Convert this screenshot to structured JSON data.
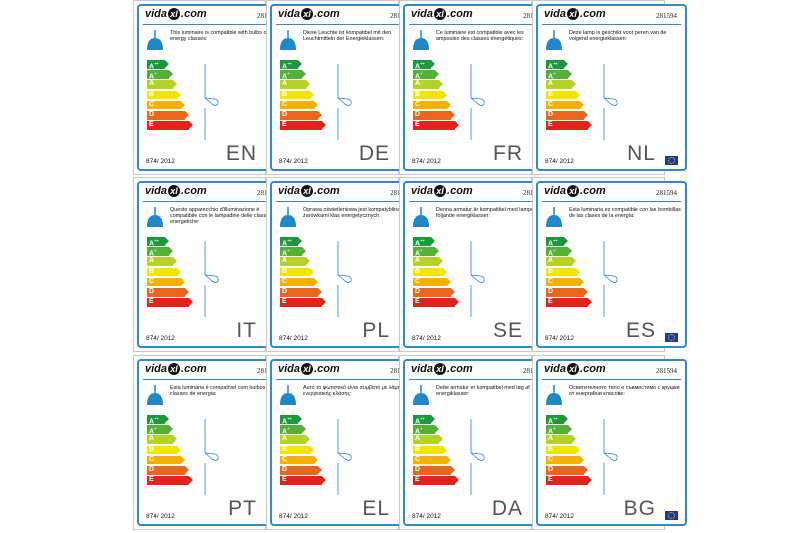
{
  "label": {
    "code": "281594",
    "regulation": "874/ 2012",
    "classes": [
      "A++",
      "A+",
      "A",
      "B",
      "C",
      "D",
      "E"
    ],
    "class_colors": [
      "#1a9a3c",
      "#53b133",
      "#b6d227",
      "#f2e600",
      "#f6b100",
      "#e9661b",
      "#e2231a"
    ]
  },
  "cells": [
    {
      "lang": "EN",
      "text": "This luminaire is compatible with bulbs of the energy classes:"
    },
    {
      "lang": "DE",
      "text": "Diese Leuchte ist kompatibel mit den Leuchtmitteln der Energieklassen:"
    },
    {
      "lang": "FR",
      "text": "Ce luminaire est compatible avec les ampoules des classes énergétiques:"
    },
    {
      "lang": "NL",
      "text": "Deze lamp is geschikt voor peren van de volgend energieklassen:"
    },
    {
      "lang": "IT",
      "text": "Questo apparecchio d'illuminazione è compatibile con le lampadine delle classi energetiche:"
    },
    {
      "lang": "PL",
      "text": "Oprawa oświetleniowa jest kompatybilna z żarówkami klas energetycznych:"
    },
    {
      "lang": "SE",
      "text": "Denna armatur är kompatibel med lampor av följande energiklasser:"
    },
    {
      "lang": "ES",
      "text": "Esta luminaria es compatible con las bombillas de las clases de la energía:"
    },
    {
      "lang": "PT",
      "text": "Esta luminária é compatível com bulbos das classes de energia:"
    },
    {
      "lang": "EL",
      "text": "Αυτό το φωτιστικό είναι συμβατό με λάμπες ενεργειακής κλάσης:"
    },
    {
      "lang": "DA",
      "text": "Dette armatur er kompatibel med løg af energiklasser:"
    },
    {
      "lang": "BG",
      "text": "Осветителното тяло е съвместимо с крушки от енергийни класове:"
    }
  ]
}
